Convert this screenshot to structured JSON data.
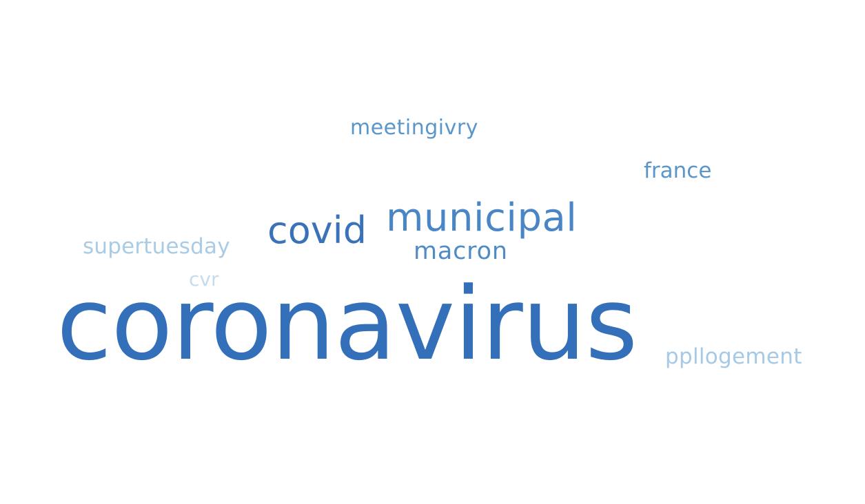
{
  "words": [
    {
      "key": "meetingivry",
      "text": "meetingivry",
      "color": "#5a96c9"
    },
    {
      "key": "france",
      "text": "france",
      "color": "#5a96c9"
    },
    {
      "key": "municipal",
      "text": "municipal",
      "color": "#4a86c6"
    },
    {
      "key": "covid",
      "text": "covid",
      "color": "#3a72b9"
    },
    {
      "key": "supertuesday",
      "text": "supertuesday",
      "color": "#a9cce6"
    },
    {
      "key": "macron",
      "text": "macron",
      "color": "#4f8cc6"
    },
    {
      "key": "cvr",
      "text": "cvr",
      "color": "#c6dcee"
    },
    {
      "key": "coronavirus",
      "text": "coronavirus",
      "color": "#3470b9"
    },
    {
      "key": "ppllogement",
      "text": "ppllogement",
      "color": "#a6c9e6"
    }
  ]
}
